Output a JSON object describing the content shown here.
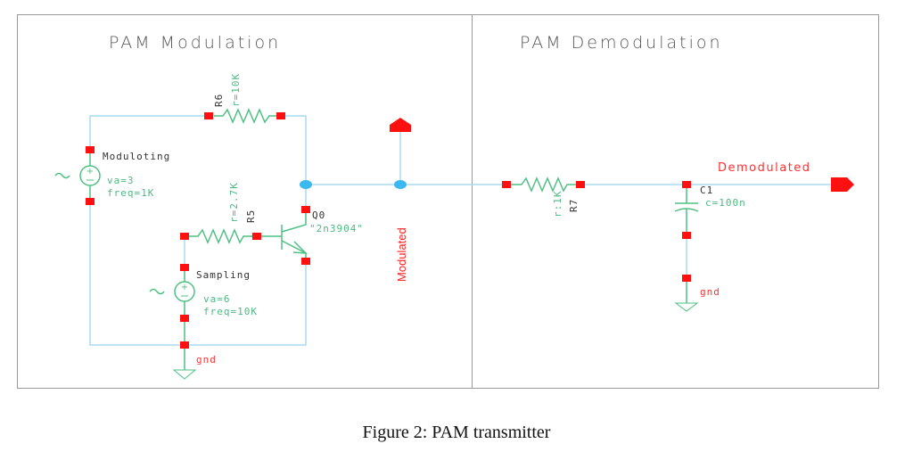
{
  "sections": {
    "modulation_title": "PAM Modulation",
    "demodulation_title": "PAM Demodulation"
  },
  "components": {
    "r6": {
      "name": "R6",
      "value": "r=10K"
    },
    "r5": {
      "name": "R5",
      "value": "r=2.7K"
    },
    "r7": {
      "name": "R7",
      "value": "r:1K"
    },
    "q0": {
      "name": "Q0",
      "model": "\"2n3904\""
    },
    "modulating": {
      "name": "Moduloting",
      "va": "va=3",
      "freq": "freq=1K"
    },
    "sampling": {
      "name": "Sampling",
      "va": "va=6",
      "freq": "freq=10K"
    },
    "c1": {
      "name": "C1",
      "value": "c=100n"
    },
    "gnd_left": "gnd",
    "gnd_right": "gnd"
  },
  "ports": {
    "modulated": "Modulated",
    "demodulated": "Demodulated"
  },
  "colors": {
    "wire": "#a8dcf0",
    "component": "#4fc083",
    "pin": "#ff1010",
    "junction": "#3ab8f0"
  },
  "caption": "Figure 2: PAM transmitter"
}
